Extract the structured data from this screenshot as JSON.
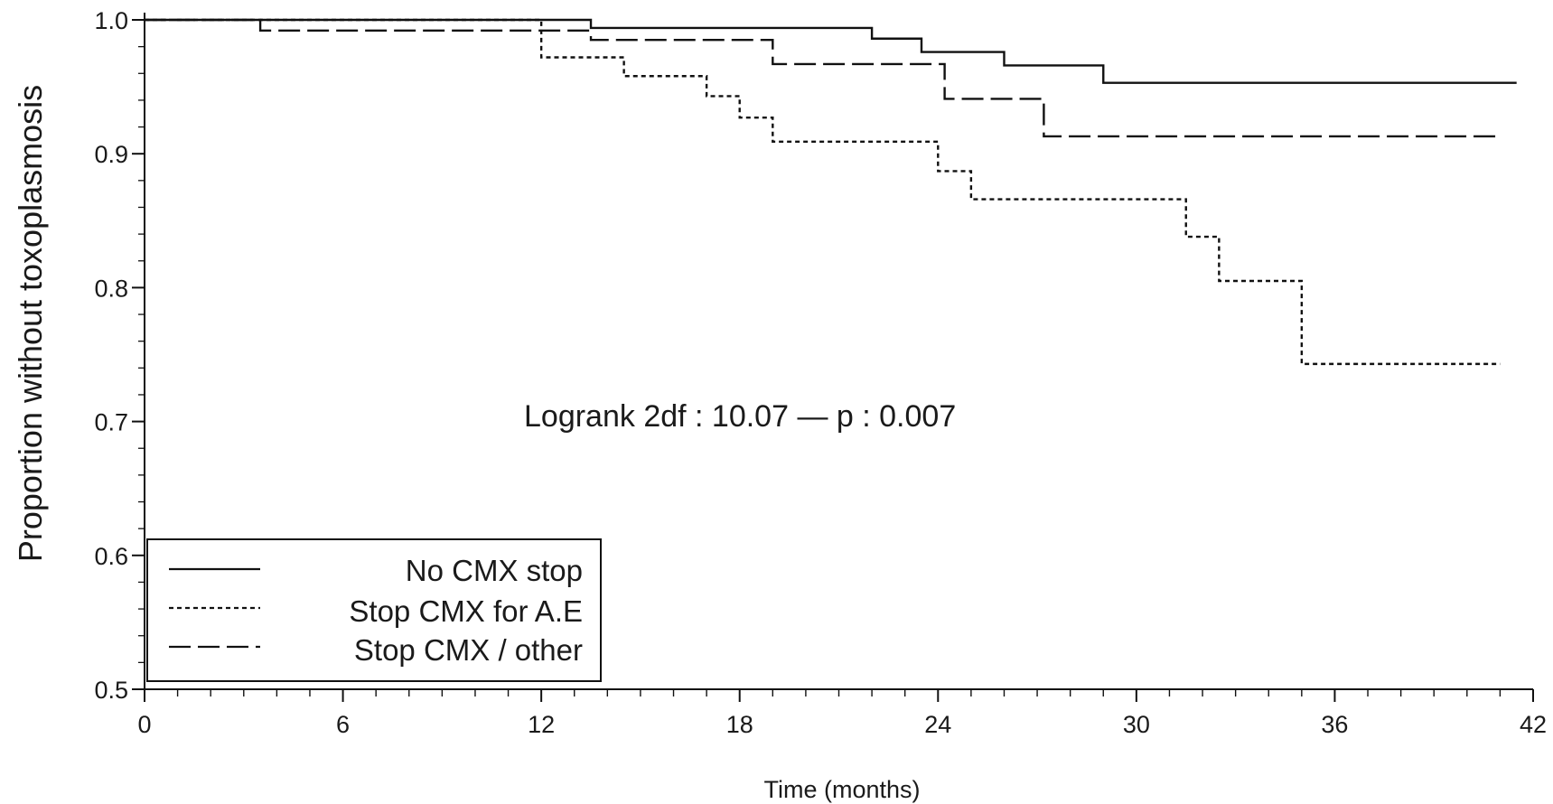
{
  "chart_data": {
    "type": "line",
    "subtype": "kaplan-meier step",
    "xlabel": "Time (months)",
    "ylabel": "Proportion without toxoplasmosis",
    "xlim": [
      0,
      42
    ],
    "ylim": [
      0.5,
      1.0
    ],
    "x_ticks": [
      0,
      6,
      12,
      18,
      24,
      30,
      36,
      42
    ],
    "x_tick_labels": [
      "0",
      "6",
      "12",
      "18",
      "24",
      "30",
      "36",
      "42"
    ],
    "y_ticks": [
      0.5,
      0.6,
      0.7,
      0.8,
      0.9,
      1.0
    ],
    "y_tick_labels": [
      "0.5",
      "0.6",
      "0.7",
      "0.8",
      "0.9",
      "1.0"
    ],
    "grid": false,
    "legend_position": "bottom-left",
    "annotation": "Logrank 2df : 10.07 — p : 0.007",
    "series": [
      {
        "name": "No CMX stop",
        "style": "solid",
        "color": "#111111",
        "x": [
          0,
          13.5,
          22.0,
          23.5,
          26.0,
          29.0,
          41.5
        ],
        "y": [
          1.0,
          0.994,
          0.986,
          0.976,
          0.966,
          0.953,
          0.953
        ]
      },
      {
        "name": "Stop CMX for A.E",
        "style": "dotted",
        "color": "#111111",
        "x": [
          0,
          12.0,
          14.5,
          17.0,
          18.0,
          19.0,
          24.0,
          25.0,
          31.5,
          32.5,
          35.0,
          41.0
        ],
        "y": [
          1.0,
          0.972,
          0.958,
          0.943,
          0.927,
          0.909,
          0.887,
          0.866,
          0.838,
          0.805,
          0.743,
          0.743
        ]
      },
      {
        "name": "Stop CMX / other",
        "style": "dashed",
        "color": "#111111",
        "x": [
          0,
          3.5,
          13.5,
          19.0,
          24.2,
          27.2,
          41.0
        ],
        "y": [
          1.0,
          0.992,
          0.985,
          0.967,
          0.941,
          0.913,
          0.913
        ]
      }
    ]
  }
}
